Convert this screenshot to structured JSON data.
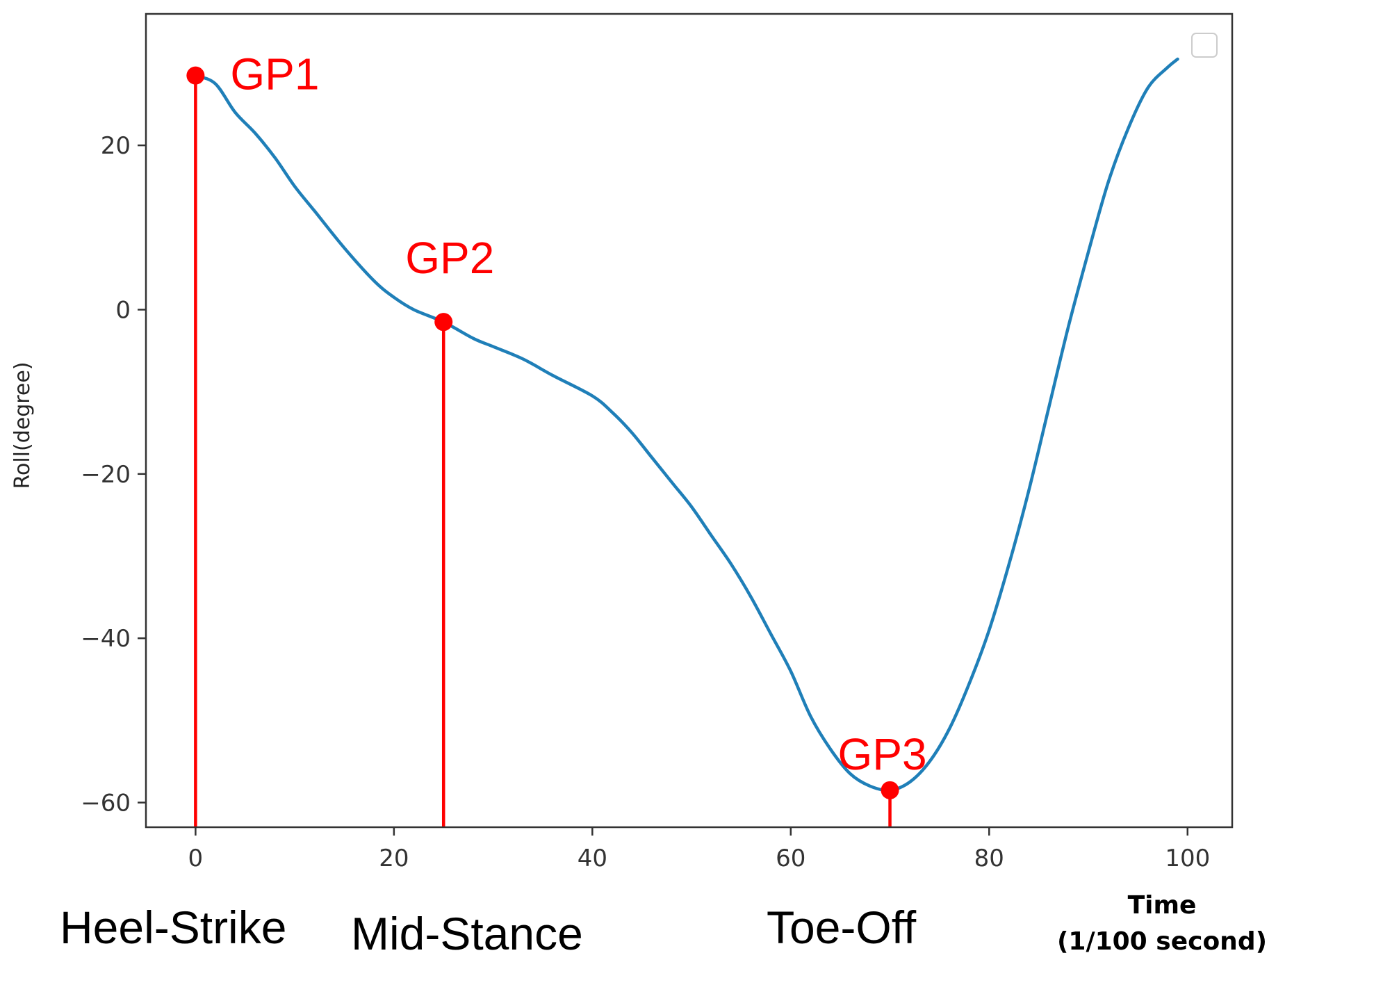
{
  "chart_data": {
    "type": "line",
    "title": "",
    "xlabel_lines": [
      "Time",
      "(1/100 second)"
    ],
    "ylabel": "Roll(degree)",
    "xlim": [
      -5,
      104.5
    ],
    "ylim": [
      -63,
      36
    ],
    "xticks": [
      0,
      20,
      40,
      60,
      80,
      100
    ],
    "yticks": [
      20,
      0,
      -20,
      -40,
      -60
    ],
    "tick_labels_x": [
      "0",
      "20",
      "40",
      "60",
      "80",
      "100"
    ],
    "tick_labels_y": [
      "20",
      "0",
      "−20",
      "−40",
      "−60"
    ],
    "grid": false,
    "legend": "top-right (empty)",
    "colors": {
      "line": "#1f7fb8",
      "markers": "#ff0000",
      "axes": "#333333"
    },
    "series": [
      {
        "x": [
          0,
          2,
          4,
          6,
          8,
          10,
          12,
          15,
          18,
          20,
          22,
          25,
          28,
          30,
          33,
          36,
          40,
          42,
          44,
          46,
          48,
          50,
          52,
          54,
          56,
          58,
          60,
          62,
          64,
          66,
          68,
          70,
          72,
          74,
          76,
          78,
          80,
          82,
          84,
          86,
          88,
          90,
          92,
          94,
          96,
          98,
          99
        ],
        "y": [
          28.5,
          27.5,
          24.0,
          21.5,
          18.5,
          15.0,
          12.0,
          7.5,
          3.5,
          1.5,
          0.0,
          -1.5,
          -3.5,
          -4.5,
          -6.0,
          -8.0,
          -10.5,
          -12.5,
          -15.0,
          -18.0,
          -21.0,
          -24.0,
          -27.5,
          -31.0,
          -35.0,
          -39.5,
          -44.0,
          -49.5,
          -53.5,
          -56.5,
          -58.0,
          -58.5,
          -57.5,
          -55.0,
          -51.0,
          -45.5,
          -39.0,
          -31.0,
          -22.0,
          -12.0,
          -2.0,
          7.0,
          15.5,
          22.0,
          27.0,
          29.5,
          30.5
        ]
      }
    ],
    "key_points": [
      {
        "label": "GP1",
        "x": 0,
        "y": 28.5
      },
      {
        "label": "GP2",
        "x": 25,
        "y": -1.5
      },
      {
        "label": "GP3",
        "x": 70,
        "y": -58.5
      }
    ],
    "phase_labels": [
      "Heel-Strike",
      "Mid-Stance",
      "Toe-Off"
    ]
  }
}
